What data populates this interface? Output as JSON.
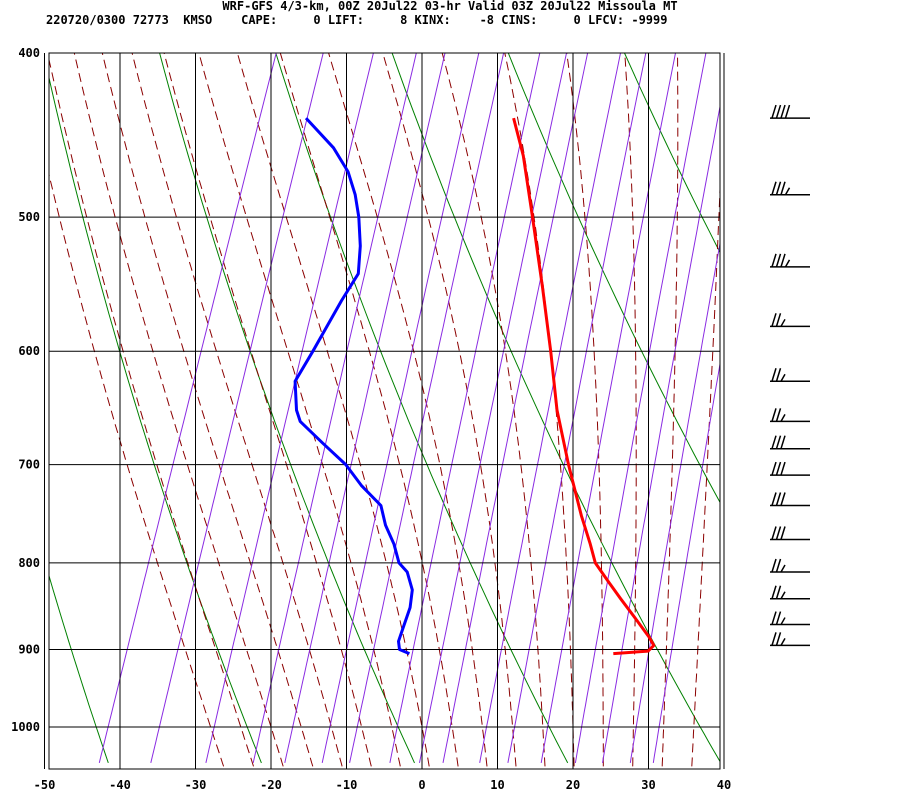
{
  "header": {
    "title": "WRF-GFS 4/3-km, 00Z 20Jul22 03-hr Valid 03Z 20Jul22 Missoula MT",
    "id": "220720/0300",
    "station_num": "72773",
    "station": "KMSO",
    "indices": [
      {
        "label": "CAPE:",
        "value": "0"
      },
      {
        "label": "LIFT:",
        "value": "8"
      },
      {
        "label": "KINX:",
        "value": "-8"
      },
      {
        "label": "CINS:",
        "value": "0"
      },
      {
        "label": "LFCV:",
        "value": "-9999"
      }
    ]
  },
  "colors": {
    "temperature": "#ff0000",
    "dewpoint": "#0000ff",
    "dry_adiabat": "#008000",
    "moist_adiabat": "#8b0000",
    "mixing_ratio": "#8a2be2",
    "grid": "#000000"
  },
  "chart_data": {
    "type": "line",
    "diagram": "skew-T log-p",
    "x_unit": "temperature (C)",
    "y_unit": "pressure (hPa)",
    "xlim": [
      -50,
      40
    ],
    "ylim": [
      1040,
      400
    ],
    "y_scale": "log",
    "x_ticks": [
      -50,
      -40,
      -30,
      -20,
      -10,
      0,
      10,
      20,
      30,
      40
    ],
    "y_ticks": [
      400,
      500,
      600,
      700,
      800,
      900,
      1000
    ],
    "grid": true,
    "series": [
      {
        "key": "temperature",
        "points": [
          {
            "p": 905,
            "t": 22
          },
          {
            "p": 902,
            "t": 26.5
          },
          {
            "p": 895,
            "t": 27
          },
          {
            "p": 885,
            "t": 26
          },
          {
            "p": 860,
            "t": 23
          },
          {
            "p": 840,
            "t": 20.5
          },
          {
            "p": 820,
            "t": 18
          },
          {
            "p": 800,
            "t": 15.5
          },
          {
            "p": 780,
            "t": 14
          },
          {
            "p": 750,
            "t": 11.5
          },
          {
            "p": 700,
            "t": 7.5
          },
          {
            "p": 650,
            "t": 3.5
          },
          {
            "p": 600,
            "t": 0
          },
          {
            "p": 550,
            "t": -4
          },
          {
            "p": 500,
            "t": -8.5
          },
          {
            "p": 460,
            "t": -12.5
          },
          {
            "p": 437,
            "t": -15.5
          }
        ]
      },
      {
        "key": "dewpoint",
        "points": [
          {
            "p": 905,
            "t": -5
          },
          {
            "p": 900,
            "t": -6.5
          },
          {
            "p": 890,
            "t": -7
          },
          {
            "p": 870,
            "t": -7
          },
          {
            "p": 850,
            "t": -7
          },
          {
            "p": 830,
            "t": -7.5
          },
          {
            "p": 810,
            "t": -9
          },
          {
            "p": 800,
            "t": -10.5
          },
          {
            "p": 780,
            "t": -12
          },
          {
            "p": 760,
            "t": -14
          },
          {
            "p": 740,
            "t": -15.5
          },
          {
            "p": 720,
            "t": -19
          },
          {
            "p": 700,
            "t": -22
          },
          {
            "p": 680,
            "t": -26
          },
          {
            "p": 660,
            "t": -30
          },
          {
            "p": 650,
            "t": -31
          },
          {
            "p": 625,
            "t": -32.5
          },
          {
            "p": 600,
            "t": -31.5
          },
          {
            "p": 560,
            "t": -30
          },
          {
            "p": 540,
            "t": -29
          },
          {
            "p": 520,
            "t": -30
          },
          {
            "p": 500,
            "t": -31.5
          },
          {
            "p": 485,
            "t": -33
          },
          {
            "p": 470,
            "t": -35
          },
          {
            "p": 455,
            "t": -38
          },
          {
            "p": 437,
            "t": -43
          }
        ]
      }
    ],
    "wind_barbs": [
      {
        "p": 437,
        "speed_kt": 40,
        "dir_deg": 240
      },
      {
        "p": 485,
        "speed_kt": 35,
        "dir_deg": 240
      },
      {
        "p": 535,
        "speed_kt": 35,
        "dir_deg": 240
      },
      {
        "p": 580,
        "speed_kt": 25,
        "dir_deg": 240
      },
      {
        "p": 625,
        "speed_kt": 25,
        "dir_deg": 240
      },
      {
        "p": 660,
        "speed_kt": 25,
        "dir_deg": 240
      },
      {
        "p": 685,
        "speed_kt": 30,
        "dir_deg": 240
      },
      {
        "p": 710,
        "speed_kt": 30,
        "dir_deg": 240
      },
      {
        "p": 740,
        "speed_kt": 30,
        "dir_deg": 240
      },
      {
        "p": 775,
        "speed_kt": 30,
        "dir_deg": 240
      },
      {
        "p": 810,
        "speed_kt": 25,
        "dir_deg": 240
      },
      {
        "p": 840,
        "speed_kt": 25,
        "dir_deg": 240
      },
      {
        "p": 870,
        "speed_kt": 25,
        "dir_deg": 240
      },
      {
        "p": 895,
        "speed_kt": 25,
        "dir_deg": 240
      }
    ]
  }
}
